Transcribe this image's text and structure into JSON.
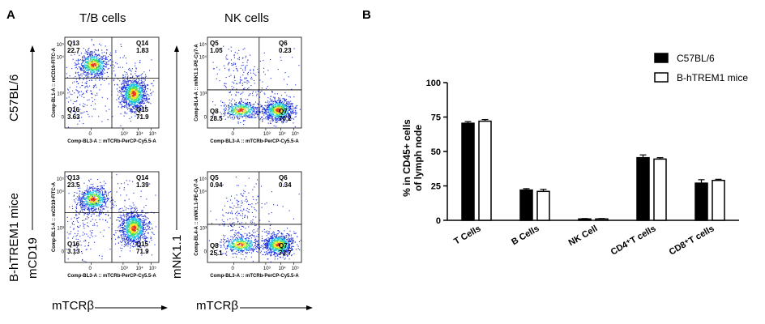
{
  "panel_a": {
    "letter": "A",
    "col_titles": [
      "T/B cells",
      "NK cells"
    ],
    "row_labels": [
      "C57BL/6",
      "B-hTREM1 mice"
    ],
    "y_markers": [
      "mCD19",
      "mNK1.1"
    ],
    "x_markers": [
      "mTCRβ",
      "mTCRβ"
    ],
    "plots": [
      {
        "id": "tb-c57",
        "xaxis_label": "Comp-BL3-A :: mTCRb-PerCP-Cy5.5-A",
        "yaxis_label": "Comp-BL1-A :: mCD19-FITC-A",
        "quadrants": [
          {
            "name": "Q13",
            "value": "22.7"
          },
          {
            "name": "Q14",
            "value": "1.83"
          },
          {
            "name": "Q16",
            "value": "3.63"
          },
          {
            "name": "Q15",
            "value": "71.9"
          }
        ]
      },
      {
        "id": "nk-c57",
        "xaxis_label": "Comp-BL3-A :: mTCRb-PerCP-Cy5.5-A",
        "yaxis_label": "Comp-BL4-A :: mNK1.1-PE-Cy7-A",
        "quadrants": [
          {
            "name": "Q5",
            "value": "1.05"
          },
          {
            "name": "Q6",
            "value": "0.23"
          },
          {
            "name": "Q8",
            "value": "28.5"
          },
          {
            "name": "Q7",
            "value": "70.2"
          }
        ]
      },
      {
        "id": "tb-htrem1",
        "xaxis_label": "Comp-BL3-A :: mTCRb-PerCP-Cy5.5-A",
        "yaxis_label": "Comp-BL1-A :: mCD19-FITC-A",
        "quadrants": [
          {
            "name": "Q13",
            "value": "23.5"
          },
          {
            "name": "Q14",
            "value": "1.39"
          },
          {
            "name": "Q16",
            "value": "3.13"
          },
          {
            "name": "Q15",
            "value": "71.9"
          }
        ]
      },
      {
        "id": "nk-htrem1",
        "xaxis_label": "Comp-BL3-A :: mTCRb-PerCP-Cy5.5-A",
        "yaxis_label": "Comp-BL4-A :: mNK1.1-PE-Cy7-A",
        "quadrants": [
          {
            "name": "Q5",
            "value": "0.94"
          },
          {
            "name": "Q6",
            "value": "0.34"
          },
          {
            "name": "Q8",
            "value": "25.1"
          },
          {
            "name": "Q7",
            "value": "73.7"
          }
        ]
      }
    ],
    "x_ticks": [
      "0",
      "10³",
      "10⁴",
      "10⁵"
    ],
    "y_ticks": [
      "10⁵",
      "10⁴",
      "10³",
      "0"
    ],
    "colors": {
      "dot_low": "#1a2bd6",
      "dot_mid": "#22c0e8",
      "dot_high": "#f2e21a",
      "dot_peak": "#e8301c"
    }
  },
  "panel_b": {
    "letter": "B",
    "legend": [
      {
        "label": "C57BL/6",
        "fill": "#000000"
      },
      {
        "label": "B-hTREM1 mice",
        "fill": "#ffffff"
      }
    ]
  },
  "chart_data": {
    "type": "bar",
    "ylabel": "% in CD45+ cells of lymph node",
    "ylim": [
      0,
      100
    ],
    "yticks": [
      0,
      25,
      50,
      75,
      100
    ],
    "categories": [
      "T Cells",
      "B Cells",
      "NK Cell",
      "CD4⁺T cells",
      "CD8⁺T cells"
    ],
    "series": [
      {
        "name": "C57BL/6",
        "values": [
          70.5,
          22,
          1,
          45.5,
          27
        ],
        "errors": [
          1.2,
          1,
          0.3,
          2,
          2.5
        ],
        "color": "#000000"
      },
      {
        "name": "B-hTREM1 mice",
        "values": [
          72,
          21,
          1,
          44.5,
          29
        ],
        "errors": [
          1.2,
          1.5,
          0.3,
          1,
          0.8
        ],
        "color": "#ffffff"
      }
    ],
    "grid": false,
    "legend_position": "top-right"
  }
}
